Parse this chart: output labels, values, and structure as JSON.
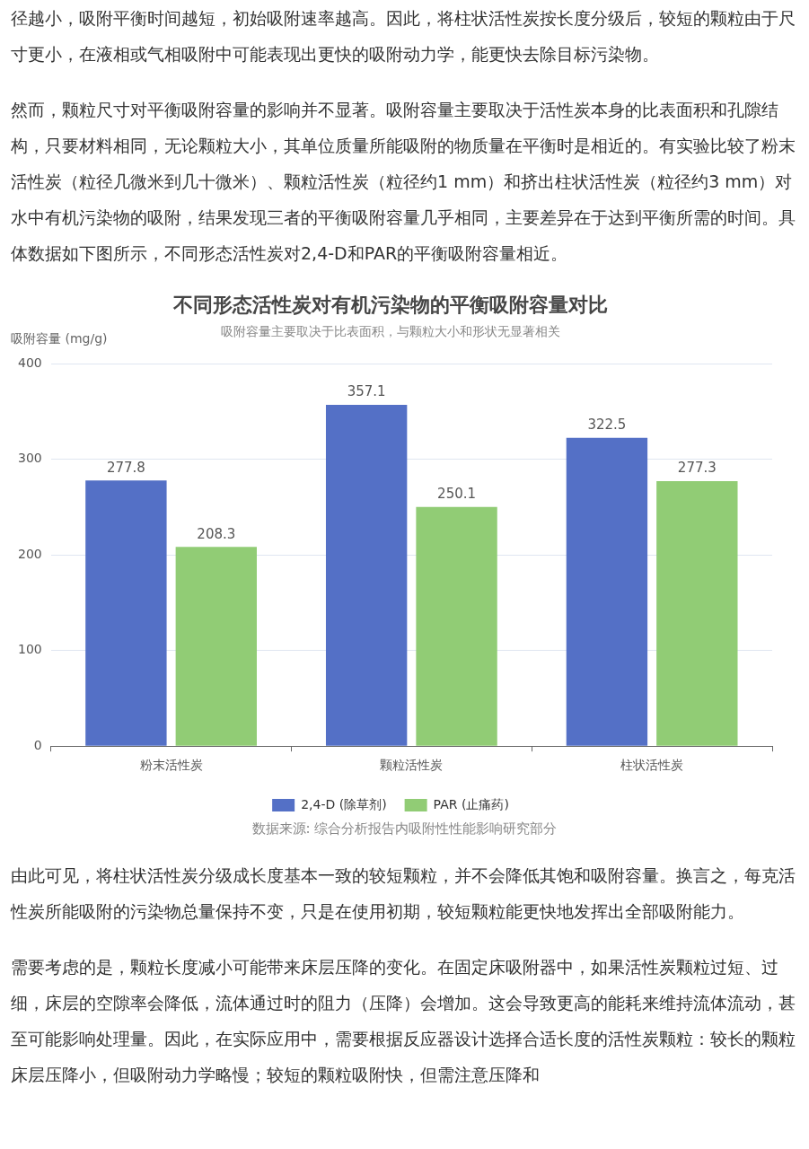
{
  "chart_data": {
    "type": "bar",
    "title": "不同形态活性炭对有机污染物的平衡吸附容量对比",
    "subtitle": "吸附容量主要取决于比表面积，与颗粒大小和形状无显著相关",
    "ylabel": "吸附容量 (mg/g)",
    "categories": [
      "粉末活性炭",
      "颗粒活性炭",
      "柱状活性炭"
    ],
    "series": [
      {
        "name": "2,4-D (除草剂)",
        "color": "#5470c6",
        "values": [
          277.8,
          357.1,
          322.5
        ]
      },
      {
        "name": "PAR (止痛药)",
        "color": "#91cc75",
        "values": [
          208.3,
          250.1,
          277.3
        ]
      }
    ],
    "ylim": [
      0,
      400
    ],
    "yticks": [
      0,
      100,
      200,
      300,
      400
    ],
    "grid": "y",
    "legend": "bottom",
    "data_labels": true,
    "annotations": [
      "径越小，吸附平衡时间越短，初始吸附速率越高。因此，将柱状活性炭按长度分级后，较短的颗粒由于尺寸更小，在液相或气相吸附中可能表现出更快的吸附动力学，能更快去除目标污染物。",
      "然而，颗粒尺寸对平衡吸附容量的影响并不显著。吸附容量主要取决于活性炭本身的比表面积和孔隙结构，只要材料相同，无论颗粒大小，其单位质量所能吸附的物质量在平衡时是相近的。有实验比较了粉末活性炭（粒径几微米到几十微米）、颗粒活性炭（粒径约1 mm）和挤出柱状活性炭（粒径约3 mm）对水中有机污染物的吸附，结果发现三者的平衡吸附容量几乎相同，主要差异在于达到平衡所需的时间。具体数据如下图所示，不同形态活性炭对2,4-D和PAR的平衡吸附容量相近。",
      "数据来源: 综合分析报告内吸附性性能影响研究部分",
      "由此可见，将柱状活性炭分级成长度基本一致的较短颗粒，并不会降低其饱和吸附容量。换言之，每克活性炭所能吸附的污染物总量保持不变，只是在使用初期，较短颗粒能更快地发挥出全部吸附能力。",
      "需要考虑的是，颗粒长度减小可能带来床层压降的变化。在固定床吸附器中，如果活性炭颗粒过短、过细，床层的空隙率会降低，流体通过时的阻力（压降）会增加。这会导致更高的能耗来维持流体流动，甚至可能影响处理量。因此，在实际应用中，需要根据反应器设计选择合适长度的活性炭颗粒：较长的颗粒床层压降小，但吸附动力学略慢；较短的颗粒吸附快，但需注意压降和"
    ]
  }
}
